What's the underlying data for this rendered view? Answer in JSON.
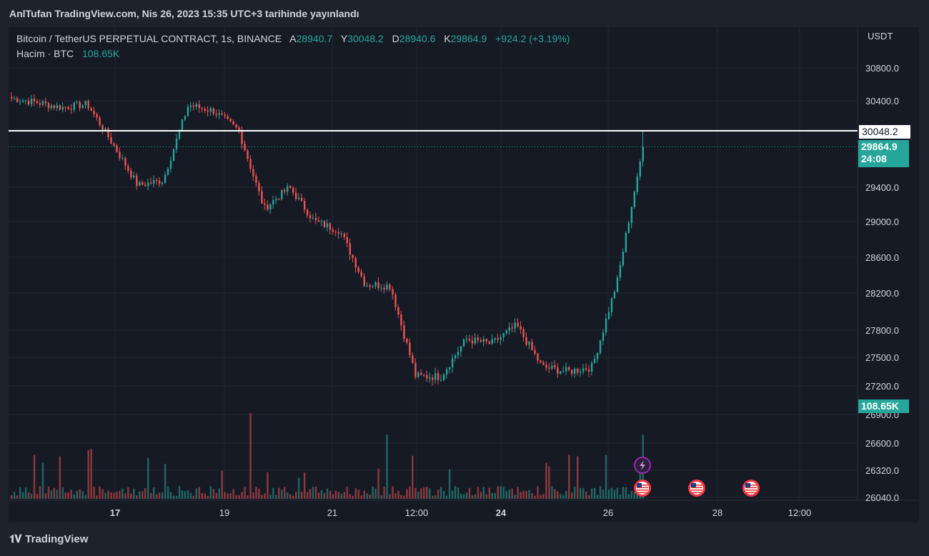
{
  "header": {
    "published": "AnlTufan TradingView.com, Nis 26, 2023 15:35 UTC+3 tarihinde yayınlandı"
  },
  "legend": {
    "symbol": "Bitcoin / TetherUS PERPETUAL CONTRACT, 1s, BINANCE",
    "open_label": "A",
    "open": "28940.7",
    "high_label": "Y",
    "high": "30048.2",
    "low_label": "D",
    "low": "28940.6",
    "close_label": "K",
    "close": "29864.9",
    "change": "+924.2 (+3.19%)",
    "volume_label": "Hacim · BTC",
    "volume": "108.65K"
  },
  "price_axis": {
    "currency": "USDT",
    "ticks": [
      "30800.0",
      "30400.0",
      "29400.0",
      "29000.0",
      "28600.0",
      "28200.0",
      "27800.0",
      "27500.0",
      "27200.0",
      "26900.0",
      "26600.0",
      "26320.0",
      "26040.0"
    ],
    "high_tag": "30048.2",
    "last_tag": "29864.9",
    "countdown": "24:08",
    "volume_tag": "108.65K"
  },
  "time_axis": {
    "ticks": [
      "17",
      "19",
      "21",
      "12:00",
      "24",
      "26",
      "28",
      "12:00"
    ]
  },
  "footer": {
    "brand": "TradingView"
  },
  "colors": {
    "up": "#26a69a",
    "down": "#ef5350",
    "background": "#161a25",
    "grid": "#232632"
  },
  "chart_data": {
    "type": "candlestick",
    "x": [
      "16",
      "17",
      "18",
      "19",
      "20",
      "21",
      "22",
      "23",
      "24",
      "25",
      "26"
    ],
    "close_path": [
      30430,
      30380,
      30320,
      30360,
      29900,
      29420,
      29480,
      30350,
      30280,
      30050,
      29150,
      29400,
      29000,
      28900,
      28300,
      28280,
      27300,
      27300,
      27700,
      27650,
      27850,
      27400,
      27350,
      27400,
      28350,
      29864.9
    ],
    "horizontal_line": 30048.2,
    "last_price": 29864.9,
    "volume_unit": "BTC",
    "event_icons": [
      "lightning-icon",
      "us-flag-icon",
      "us-flag-icon",
      "us-flag-icon"
    ]
  }
}
